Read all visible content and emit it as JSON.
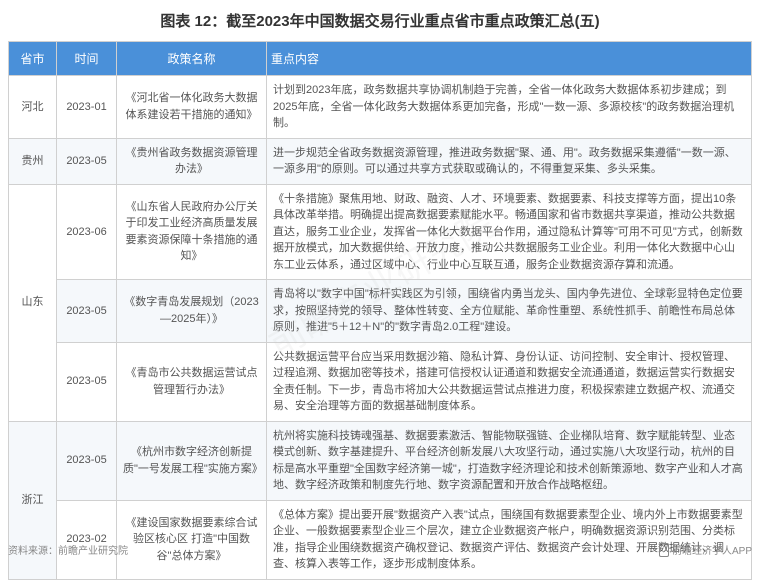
{
  "title": "图表 12：截至2023年中国数据交易行业重点省市重点政策汇总(五)",
  "header": {
    "province": "省市",
    "time": "时间",
    "policy": "政策名称",
    "content": "重点内容"
  },
  "rows": [
    {
      "province": "河北",
      "time": "2023-01",
      "policy": "《河北省一体化政务大数据体系建设若干措施的通知》",
      "content": "计划到2023年底，政务数据共享协调机制趋于完善，全省一体化政务大数据体系初步建成；到2025年底，全省一体化政务大数据体系更加完备，形成\"一数一源、多源校核\"的政务数据治理机制。",
      "bg": "odd"
    },
    {
      "province": "贵州",
      "time": "2023-05",
      "policy": "《贵州省政务数据资源管理办法》",
      "content": "进一步规范全省政务数据资源管理，推进政务数据\"聚、通、用\"。政务数据采集遵循\"一数一源、一源多用\"的原则。可以通过共享方式获取或确认的，不得重复采集、多头采集。",
      "bg": "even"
    },
    {
      "province": "山东",
      "province_rowspan": 3,
      "time": "2023-06",
      "policy": "《山东省人民政府办公厅关于印发工业经济高质量发展要素资源保障十条措施的通知》",
      "content": "《十条措施》聚焦用地、财政、融资、人才、环境要素、数据要素、科技支撑等方面，提出10条具体改革举措。明确提出提高数据要素赋能水平。畅通国家和省市数据共享渠道，推动公共数据直达，服务工业企业，发挥省一体化大数据平台作用，通过隐私计算等\"可用不可见\"方式，创新数据开放模式，加大数据供给、开放力度，推动公共数据服务工业企业。利用一体化大数据中心山东工业云体系，通过区域中心、行业中心互联互通，服务企业数据资源存算和流通。",
      "bg": "odd"
    },
    {
      "time": "2023-05",
      "policy": "《数字青岛发展规划（2023—2025年）》",
      "content": "青岛将以\"数字中国\"标杆实践区为引领，围绕省内勇当龙头、国内争先进位、全球彰显特色定位要求，按照坚持党的领导、整体性转变、全方位赋能、革命性重塑、系统性抓手、前瞻性布局总体原则，推进\"5＋12＋N\"的\"数字青岛2.0工程\"建设。",
      "bg": "even"
    },
    {
      "time": "2023-05",
      "policy": "《青岛市公共数据运营试点管理暂行办法》",
      "content": "公共数据运营平台应当采用数据沙箱、隐私计算、身份认证、访问控制、安全审计、授权管理、过程追溯、数据加密等技术，搭建可信授权认证通道和数据安全流通通道，数据运营实行数据安全责任制。下一步，青岛市将加大公共数据运营试点推进力度，积极探索建立数据产权、流通交易、安全治理等方面的数据基础制度体系。",
      "bg": "odd"
    },
    {
      "province": "浙江",
      "province_rowspan": 2,
      "time": "2023-05",
      "policy": "《杭州市数字经济创新提质\"一号发展工程\"实施方案》",
      "content": "杭州将实施科技铸魂强基、数据要素激活、智能物联强链、企业梯队培育、数字赋能转型、业态模式创新、数字基建提升、平台经济创新发展八大攻坚行动，通过实施八大攻坚行动，杭州的目标是高水平重塑\"全国数字经济第一城\"，打造数字经济理论和技术创新策源地、数字产业和人才高地、数字经济政策和制度先行地、数字资源配置和开放合作战略枢纽。",
      "bg": "even"
    },
    {
      "time": "2023-02",
      "policy": "《建设国家数据要素综合试验区核心区 打造\"中国数谷\"总体方案》",
      "content": "《总体方案》提出要开展\"数据资产入表\"试点，围绕国有数据要素型企业、境内外上市数据要素型企业、一般数据要素型企业三个层次，建立企业数据资产帐户，明确数据资源识别范围、分类标准，指导企业围绕数据资产确权登记、数据资产评估、数据资产会计处理、开展数据统计、调查、核算入表等工作，逐步形成制度体系。",
      "bg": "odd"
    }
  ],
  "footer": {
    "source": "资料来源：前瞻产业研究院",
    "app": "前瞻经济学人APP"
  },
  "watermark": "前瞻产业研究院",
  "colors": {
    "header_bg": "#4a90d9",
    "header_text": "#ffffff",
    "row_odd": "#ffffff",
    "row_even": "#f5f8fb",
    "border": "#d0d0d0",
    "text": "#555555",
    "title": "#333333"
  }
}
